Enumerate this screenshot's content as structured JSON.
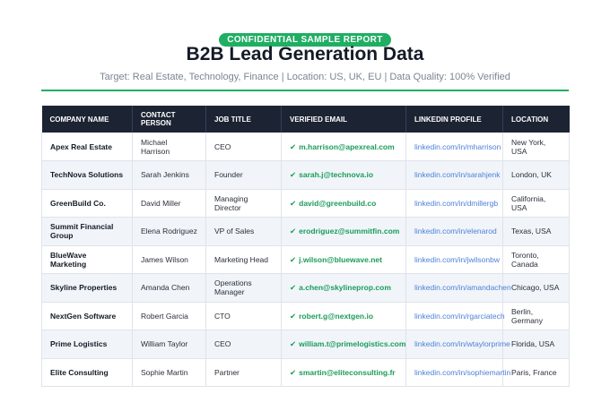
{
  "badge": "CONFIDENTIAL SAMPLE REPORT",
  "title": "B2B Lead Generation Data",
  "subtitle": "Target: Real Estate, Technology, Finance | Location: US, UK, EU | Data Quality: 100% Verified",
  "colors": {
    "accent": "#1fae63",
    "header_bg": "#1c2333",
    "link": "#4d7fd6"
  },
  "table": {
    "headers": [
      "COMPANY NAME",
      "CONTACT PERSON",
      "JOB TITLE",
      "VERIFIED EMAIL",
      "LINKEDIN PROFILE",
      "LOCATION"
    ],
    "check_icon": "✔",
    "rows": [
      {
        "company": "Apex Real Estate",
        "contact": "Michael Harrison",
        "title": "CEO",
        "email": "m.harrison@apexreal.com",
        "linkedin": "linkedin.com/in/mharrison",
        "location": "New York, USA"
      },
      {
        "company": "TechNova Solutions",
        "contact": "Sarah Jenkins",
        "title": "Founder",
        "email": "sarah.j@technova.io",
        "linkedin": "linkedin.com/in/sarahjenk",
        "location": "London, UK"
      },
      {
        "company": "GreenBuild Co.",
        "contact": "David Miller",
        "title": "Managing Director",
        "email": "david@greenbuild.co",
        "linkedin": "linkedin.com/in/dmillergb",
        "location": "California, USA"
      },
      {
        "company": "Summit Financial Group",
        "contact": "Elena Rodriguez",
        "title": "VP of Sales",
        "email": "erodriguez@summitfin.com",
        "linkedin": "linkedin.com/in/elenarod",
        "location": "Texas, USA"
      },
      {
        "company": "BlueWave Marketing",
        "contact": "James Wilson",
        "title": "Marketing Head",
        "email": "j.wilson@bluewave.net",
        "linkedin": "linkedin.com/in/jwilsonbw",
        "location": "Toronto, Canada"
      },
      {
        "company": "Skyline Properties",
        "contact": "Amanda Chen",
        "title": "Operations Manager",
        "email": "a.chen@skylineprop.com",
        "linkedin": "linkedin.com/in/amandachen",
        "location": "Chicago, USA"
      },
      {
        "company": "NextGen Software",
        "contact": "Robert Garcia",
        "title": "CTO",
        "email": "robert.g@nextgen.io",
        "linkedin": "linkedin.com/in/rgarciatech",
        "location": "Berlin, Germany"
      },
      {
        "company": "Prime Logistics",
        "contact": "William Taylor",
        "title": "CEO",
        "email": "william.t@primelogistics.com",
        "linkedin": "linkedin.com/in/wtaylorprime",
        "location": "Florida, USA"
      },
      {
        "company": "Elite Consulting",
        "contact": "Sophie Martin",
        "title": "Partner",
        "email": "smartin@eliteconsulting.fr",
        "linkedin": "linkedin.com/in/sophiemartin",
        "location": "Paris, France"
      }
    ]
  }
}
